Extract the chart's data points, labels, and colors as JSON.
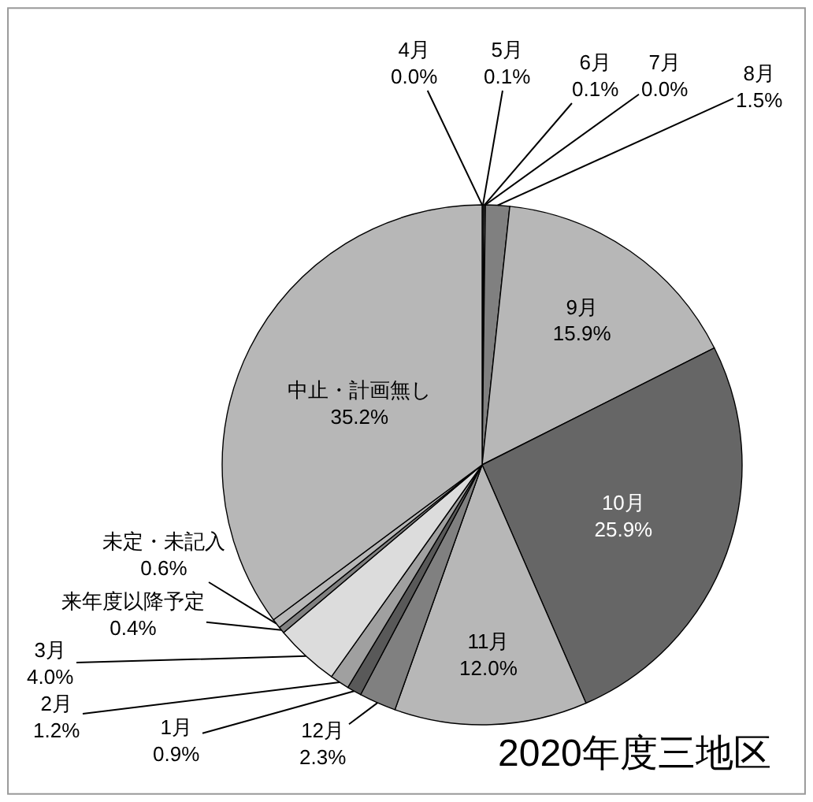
{
  "chart_data": {
    "type": "pie",
    "title": "2020年度三地区",
    "categories": [
      "4月",
      "5月",
      "6月",
      "7月",
      "8月",
      "9月",
      "10月",
      "11月",
      "12月",
      "1月",
      "2月",
      "3月",
      "来年度以降予定",
      "未定・未記入",
      "中止・計画無し"
    ],
    "values": [
      0,
      0.1,
      0.1,
      0,
      1.5,
      15.9,
      25.9,
      12.0,
      2.3,
      0.9,
      1.2,
      4.0,
      0.4,
      0.6,
      35.2
    ],
    "value_labels": [
      "0.0%",
      "0.1%",
      "0.1%",
      "0.0%",
      "1.5%",
      "15.9%",
      "25.9%",
      "12.0%",
      "2.3%",
      "0.9%",
      "1.2%",
      "4.0%",
      "0.4%",
      "0.6%",
      "35.2%"
    ],
    "colors": [
      "#595959",
      "#808080",
      "#a0a0a0",
      "#595959",
      "#808080",
      "#b7b7b7",
      "#666666",
      "#b7b7b7",
      "#808080",
      "#595959",
      "#a0a0a0",
      "#dcdcdc",
      "#808080",
      "#b7b7b7",
      "#b7b7b7"
    ]
  }
}
